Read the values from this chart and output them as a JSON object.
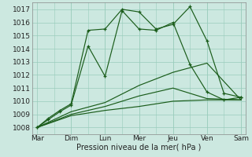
{
  "bg_color": "#cce8e0",
  "grid_color": "#99ccbb",
  "line_color": "#1a5c1a",
  "xlabels": [
    "Mar",
    "Dim",
    "Lun",
    "Mer",
    "Jeu",
    "Ven",
    "Sam"
  ],
  "xlabel": "Pression niveau de la mer( hPa )",
  "ylim": [
    1007.5,
    1017.5
  ],
  "yticks": [
    1008,
    1009,
    1010,
    1011,
    1012,
    1013,
    1014,
    1015,
    1016,
    1017
  ],
  "line1_x": [
    0,
    0.33,
    0.67,
    1.0,
    1.5,
    2.0,
    2.5,
    3.0,
    3.5,
    4.0,
    4.5,
    5.0,
    5.5,
    6.0
  ],
  "line1_y": [
    1008.0,
    1008.7,
    1009.3,
    1009.8,
    1015.4,
    1015.5,
    1017.0,
    1016.8,
    1015.5,
    1015.85,
    1017.2,
    1014.6,
    1010.6,
    1010.3
  ],
  "line2_x": [
    0,
    0.33,
    0.67,
    1.0,
    1.5,
    2.0,
    2.5,
    3.0,
    3.5,
    4.0,
    4.5,
    5.0,
    5.5,
    6.0
  ],
  "line2_y": [
    1008.0,
    1008.6,
    1009.2,
    1009.7,
    1014.2,
    1011.9,
    1016.9,
    1015.5,
    1015.4,
    1016.0,
    1012.8,
    1010.7,
    1010.1,
    1010.3
  ],
  "line3_x": [
    0,
    1,
    2,
    3,
    4,
    5,
    6
  ],
  "line3_y": [
    1008.0,
    1009.2,
    1009.9,
    1011.2,
    1012.2,
    1012.9,
    1010.1
  ],
  "line4_x": [
    0,
    1,
    2,
    3,
    4,
    5,
    6
  ],
  "line4_y": [
    1008.0,
    1009.0,
    1009.6,
    1010.4,
    1011.0,
    1010.2,
    1010.1
  ],
  "line5_x": [
    0,
    1,
    2,
    3,
    4,
    5,
    6
  ],
  "line5_y": [
    1008.0,
    1008.9,
    1009.3,
    1009.6,
    1010.0,
    1010.1,
    1010.1
  ]
}
